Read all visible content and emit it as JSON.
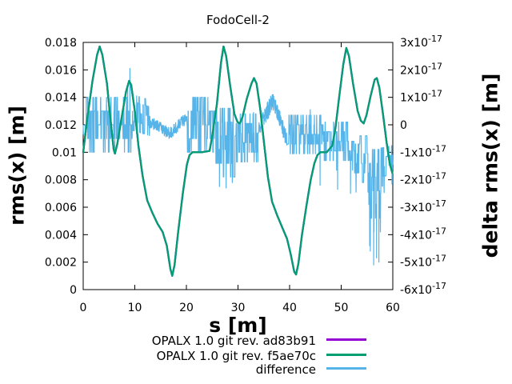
{
  "chart_data": {
    "type": "line",
    "title": "FodoCell-2",
    "xlabel": "s [m]",
    "ylabel": "rms(x) [m]",
    "y2label": "delta rms(x) [m]",
    "xlim": [
      0,
      60
    ],
    "ylim": [
      0,
      0.018
    ],
    "y2lim": [
      -6e-17,
      3e-17
    ],
    "grid": false,
    "legend_position": "below-plot-right",
    "axis_color": "#000000",
    "background": "#ffffff",
    "x_ticks": [
      0,
      10,
      20,
      30,
      40,
      50,
      60
    ],
    "x_tick_labels": [
      "0",
      "10",
      "20",
      "30",
      "40",
      "50",
      "60"
    ],
    "y_ticks": [
      0,
      0.002,
      0.004,
      0.006,
      0.008,
      0.01,
      0.012,
      0.014,
      0.016,
      0.018
    ],
    "y_tick_labels": [
      "0",
      "0.002",
      "0.004",
      "0.006",
      "0.008",
      "0.01",
      "0.012",
      "0.014",
      "0.016",
      "0.018"
    ],
    "y2_ticks_e17": [
      3,
      2,
      1,
      0,
      -1,
      -2,
      -3,
      -4,
      -5,
      -6
    ],
    "y2_tick_labels": [
      "3x10^-17",
      "2x10^-17",
      "1x10^-17",
      "0",
      "-1x10^-17",
      "-2x10^-17",
      "-3x10^-17",
      "-4x10^-17",
      "-5x10^-17",
      "-6x10^-17"
    ],
    "series": [
      {
        "name": "OPALX 1.0 git rev. ad83b91",
        "color": "#9400d3",
        "axis": "y1",
        "points": "same-as-f5ae70c"
      },
      {
        "name": "OPALX 1.0 git rev. f5ae70c",
        "color": "#009e73",
        "axis": "y1",
        "points": [
          [
            0,
            0.01
          ],
          [
            0.8,
            0.0125
          ],
          [
            1.8,
            0.0152
          ],
          [
            2.7,
            0.0171
          ],
          [
            3.2,
            0.0177
          ],
          [
            3.7,
            0.0171
          ],
          [
            4.6,
            0.015
          ],
          [
            5.4,
            0.012
          ],
          [
            5.9,
            0.0102
          ],
          [
            6.15,
            0.0099
          ],
          [
            6.6,
            0.0106
          ],
          [
            7.4,
            0.0124
          ],
          [
            8.3,
            0.0144
          ],
          [
            8.9,
            0.0152
          ],
          [
            9.3,
            0.0149
          ],
          [
            10.0,
            0.013
          ],
          [
            10.7,
            0.0105
          ],
          [
            11.5,
            0.0083
          ],
          [
            12.4,
            0.0065
          ],
          [
            13.4,
            0.0056
          ],
          [
            14.4,
            0.0048
          ],
          [
            15.4,
            0.0042
          ],
          [
            16.2,
            0.0032
          ],
          [
            16.9,
            0.0015
          ],
          [
            17.25,
            0.001
          ],
          [
            17.7,
            0.0018
          ],
          [
            18.4,
            0.0042
          ],
          [
            19.3,
            0.007
          ],
          [
            20.1,
            0.0091
          ],
          [
            20.6,
            0.0098
          ],
          [
            21.2,
            0.01
          ],
          [
            23.0,
            0.01
          ],
          [
            24.5,
            0.0101
          ],
          [
            25.0,
            0.0112
          ],
          [
            25.9,
            0.0135
          ],
          [
            26.7,
            0.0165
          ],
          [
            27.2,
            0.0177
          ],
          [
            27.7,
            0.017
          ],
          [
            28.5,
            0.0148
          ],
          [
            29.3,
            0.0128
          ],
          [
            29.9,
            0.0122
          ],
          [
            30.35,
            0.0121
          ],
          [
            30.9,
            0.0126
          ],
          [
            31.7,
            0.0139
          ],
          [
            32.6,
            0.015
          ],
          [
            33.1,
            0.0154
          ],
          [
            33.6,
            0.015
          ],
          [
            34.3,
            0.0132
          ],
          [
            35.0,
            0.0108
          ],
          [
            35.8,
            0.0082
          ],
          [
            36.6,
            0.0064
          ],
          [
            37.6,
            0.0054
          ],
          [
            38.6,
            0.0045
          ],
          [
            39.5,
            0.0037
          ],
          [
            40.2,
            0.0026
          ],
          [
            40.9,
            0.0013
          ],
          [
            41.25,
            0.0011
          ],
          [
            41.7,
            0.0019
          ],
          [
            42.4,
            0.004
          ],
          [
            43.3,
            0.0062
          ],
          [
            44.1,
            0.008
          ],
          [
            44.8,
            0.0092
          ],
          [
            45.4,
            0.0098
          ],
          [
            46.0,
            0.01
          ],
          [
            47.2,
            0.01
          ],
          [
            48.3,
            0.0105
          ],
          [
            48.9,
            0.0118
          ],
          [
            49.6,
            0.014
          ],
          [
            50.4,
            0.0164
          ],
          [
            51.0,
            0.0176
          ],
          [
            51.5,
            0.017
          ],
          [
            52.3,
            0.015
          ],
          [
            53.2,
            0.013
          ],
          [
            53.8,
            0.0123
          ],
          [
            54.35,
            0.0121
          ],
          [
            54.9,
            0.0127
          ],
          [
            55.7,
            0.0141
          ],
          [
            56.5,
            0.0153
          ],
          [
            56.9,
            0.0154
          ],
          [
            57.4,
            0.0147
          ],
          [
            58.1,
            0.0128
          ],
          [
            58.8,
            0.0107
          ],
          [
            59.4,
            0.0092
          ],
          [
            59.9,
            0.0085
          ]
        ]
      },
      {
        "name": "difference",
        "color": "#56b4e9",
        "axis": "y2",
        "unit_e17": 1,
        "band_segments": [
          [
            0.0,
            0.4,
            0,
            0,
            0.35,
            0.35,
            0.35
          ],
          [
            0.4,
            9.5,
            0,
            0,
            1.05,
            1.05,
            0.5
          ],
          [
            9.5,
            13.0,
            0.5,
            0.3,
            0.6,
            0.8,
            0.35
          ],
          [
            13.0,
            16.8,
            0.1,
            -0.32,
            0.2,
            0.2,
            0.05
          ],
          [
            16.8,
            20.0,
            -0.32,
            0.25,
            0.2,
            0.2,
            0.05
          ],
          [
            20.0,
            25.5,
            0,
            0,
            1.05,
            1.05,
            0.5
          ],
          [
            25.5,
            29.5,
            -0.4,
            -0.4,
            1.15,
            1.6,
            0.5
          ],
          [
            29.5,
            34.0,
            -0.3,
            -0.3,
            0.75,
            1.2,
            0.35
          ],
          [
            34.0,
            36.8,
            -0.1,
            0.9,
            0.3,
            0.35,
            0.05
          ],
          [
            36.8,
            39.5,
            0.9,
            -0.55,
            0.3,
            0.35,
            0.05
          ],
          [
            39.5,
            46.5,
            -0.35,
            -0.35,
            0.7,
            0.8,
            0.35
          ],
          [
            46.5,
            52.5,
            -0.6,
            -0.6,
            0.7,
            1.1,
            0.35
          ],
          [
            52.5,
            55.3,
            -1.4,
            -1.4,
            1.0,
            1.4,
            0.35
          ],
          [
            55.3,
            57.6,
            -1.9,
            -1.9,
            1.1,
            2.6,
            0.5
          ],
          [
            57.6,
            60.0,
            -1.55,
            -1.45,
            0.85,
            0.95,
            0.35
          ]
        ],
        "spikes": [
          [
            8.62,
            1.35
          ],
          [
            9.05,
            2.05
          ],
          [
            26.4,
            -2.25
          ],
          [
            27.7,
            -2.3
          ],
          [
            28.9,
            -2.1
          ],
          [
            33.0,
            0.45
          ],
          [
            44.0,
            0.55
          ],
          [
            45.9,
            -2.2
          ],
          [
            49.3,
            -2.35
          ],
          [
            51.8,
            -2.5
          ],
          [
            55.65,
            -4.6
          ],
          [
            56.3,
            -5.1
          ],
          [
            56.85,
            -4.85
          ],
          [
            57.3,
            -5.0
          ]
        ]
      }
    ]
  }
}
